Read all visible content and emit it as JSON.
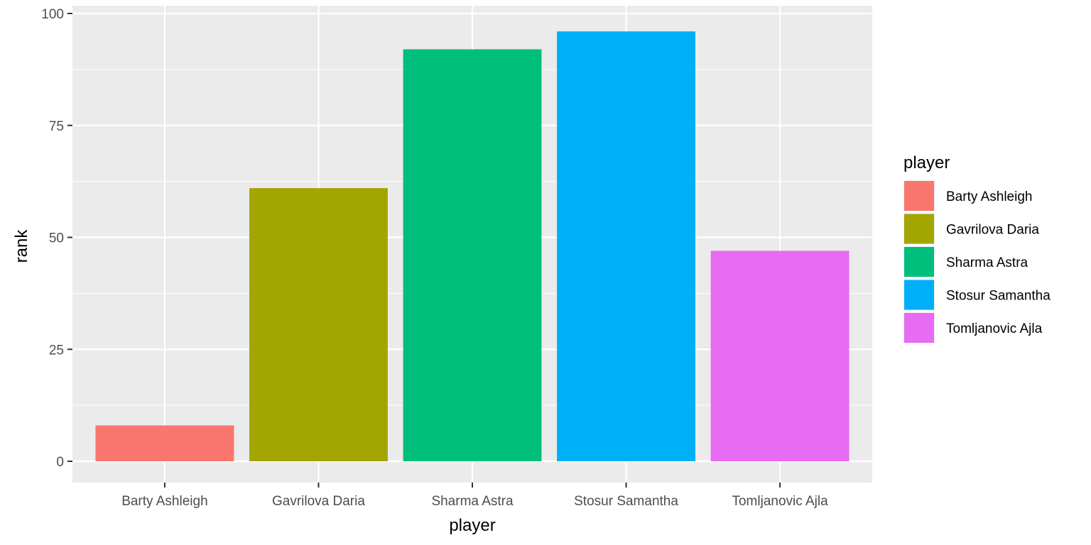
{
  "chart_data": {
    "type": "bar",
    "title": "",
    "xlabel": "player",
    "ylabel": "rank",
    "categories": [
      "Barty Ashleigh",
      "Gavrilova Daria",
      "Sharma Astra",
      "Stosur Samantha",
      "Tomljanovic Ajla"
    ],
    "values": [
      8,
      61,
      92,
      96,
      47
    ],
    "colors": [
      "#F8766D",
      "#A3A500",
      "#00BF7D",
      "#00B0F6",
      "#E76BF3"
    ],
    "ylim": [
      0,
      100
    ],
    "yticks": [
      "0",
      "25",
      "50",
      "75",
      "100"
    ],
    "grid": true,
    "panel_background": "#EBEBEB",
    "gridline_color": "#FFFFFF",
    "legend": {
      "title": "player",
      "position": "right",
      "entries": [
        "Barty Ashleigh",
        "Gavrilova Daria",
        "Sharma Astra",
        "Stosur Samantha",
        "Tomljanovic Ajla"
      ]
    }
  }
}
